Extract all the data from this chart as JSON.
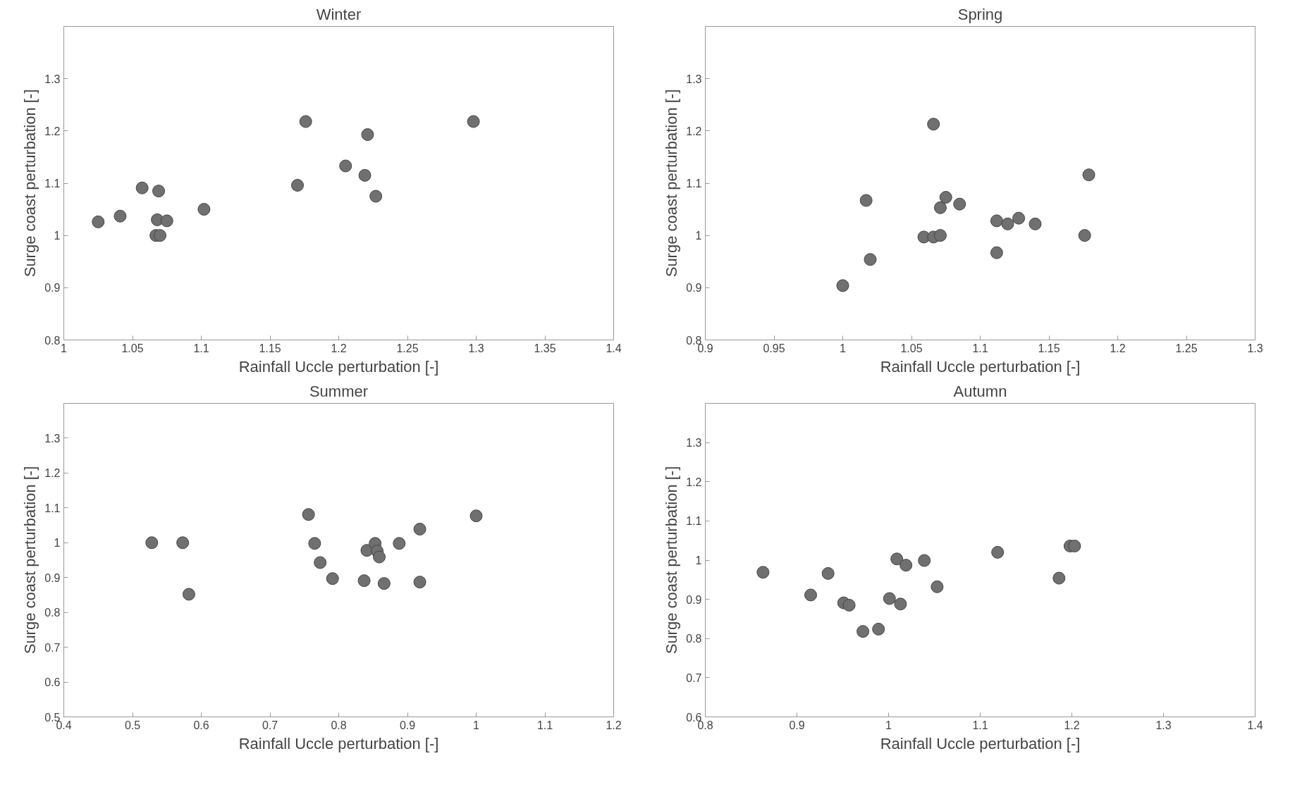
{
  "chart_data": [
    {
      "type": "scatter",
      "title": "Winter",
      "xlabel": "Rainfall Uccle perturbation [-]",
      "ylabel": "Surge coast perturbation [-]",
      "xlim": [
        1,
        1.4
      ],
      "ylim": [
        0.8,
        1.4
      ],
      "xticks": [
        1,
        1.05,
        1.1,
        1.15,
        1.2,
        1.25,
        1.3,
        1.35,
        1.4
      ],
      "yticks": [
        0.8,
        0.9,
        1,
        1.1,
        1.2,
        1.3
      ],
      "marker": "circle",
      "grid": false,
      "series": [
        {
          "color": "#707070",
          "x": [
            1.025,
            1.041,
            1.057,
            1.069,
            1.068,
            1.075,
            1.067,
            1.07,
            1.102,
            1.17,
            1.176,
            1.205,
            1.221,
            1.219,
            1.227,
            1.298
          ],
          "values": [
            1.026,
            1.037,
            1.091,
            1.085,
            1.03,
            1.028,
            1.0,
            1.0,
            1.05,
            1.096,
            1.218,
            1.133,
            1.193,
            1.115,
            1.075,
            1.218
          ]
        }
      ]
    },
    {
      "type": "scatter",
      "title": "Spring",
      "xlabel": "Rainfall Uccle perturbation [-]",
      "ylabel": "Surge coast perturbation [-]",
      "xlim": [
        0.9,
        1.3
      ],
      "ylim": [
        0.8,
        1.4
      ],
      "xticks": [
        0.9,
        0.95,
        1,
        1.05,
        1.1,
        1.15,
        1.2,
        1.25,
        1.3
      ],
      "yticks": [
        0.8,
        0.9,
        1,
        1.1,
        1.2,
        1.3
      ],
      "marker": "circle",
      "grid": false,
      "series": [
        {
          "color": "#707070",
          "x": [
            1.0,
            1.017,
            1.02,
            1.059,
            1.066,
            1.071,
            1.071,
            1.075,
            1.066,
            1.085,
            1.112,
            1.112,
            1.12,
            1.128,
            1.14,
            1.176,
            1.179
          ],
          "values": [
            0.904,
            1.067,
            0.954,
            0.997,
            0.997,
            1.0,
            1.053,
            1.073,
            1.213,
            1.06,
            1.028,
            0.967,
            1.022,
            1.033,
            1.022,
            1.0,
            1.116
          ]
        }
      ]
    },
    {
      "type": "scatter",
      "title": "Summer",
      "xlabel": "Rainfall Uccle perturbation [-]",
      "ylabel": "Surge coast perturbation [-]",
      "xlim": [
        0.4,
        1.2
      ],
      "ylim": [
        0.5,
        1.4
      ],
      "xticks": [
        0.4,
        0.5,
        0.6,
        0.7,
        0.8,
        0.9,
        1,
        1.1,
        1.2
      ],
      "yticks": [
        0.5,
        0.6,
        0.7,
        0.8,
        0.9,
        1,
        1.1,
        1.2,
        1.3
      ],
      "marker": "circle",
      "grid": false,
      "series": [
        {
          "color": "#707070",
          "x": [
            0.528,
            0.573,
            0.582,
            0.756,
            0.765,
            0.773,
            0.791,
            0.837,
            0.841,
            0.853,
            0.856,
            0.859,
            0.866,
            0.888,
            0.918,
            0.918,
            1.0
          ],
          "values": [
            1.0,
            1.0,
            0.852,
            1.081,
            0.998,
            0.943,
            0.897,
            0.891,
            0.978,
            0.998,
            0.976,
            0.959,
            0.883,
            0.998,
            1.039,
            0.887,
            1.077
          ]
        }
      ]
    },
    {
      "type": "scatter",
      "title": "Autumn",
      "xlabel": "Rainfall Uccle perturbation [-]",
      "ylabel": "Surge coast perturbation [-]",
      "xlim": [
        0.8,
        1.4
      ],
      "ylim": [
        0.6,
        1.4
      ],
      "xticks": [
        0.8,
        0.9,
        1,
        1.1,
        1.2,
        1.3,
        1.4
      ],
      "yticks": [
        0.6,
        0.7,
        0.8,
        0.9,
        1,
        1.1,
        1.2,
        1.3
      ],
      "marker": "circle",
      "grid": false,
      "series": [
        {
          "color": "#707070",
          "x": [
            0.863,
            0.915,
            0.934,
            0.951,
            0.957,
            0.972,
            0.989,
            1.001,
            1.009,
            1.013,
            1.019,
            1.039,
            1.053,
            1.119,
            1.186,
            1.198,
            1.203
          ],
          "values": [
            0.969,
            0.911,
            0.966,
            0.891,
            0.885,
            0.818,
            0.824,
            0.902,
            1.003,
            0.888,
            0.987,
            0.999,
            0.932,
            1.02,
            0.954,
            1.036,
            1.036
          ]
        }
      ]
    }
  ]
}
